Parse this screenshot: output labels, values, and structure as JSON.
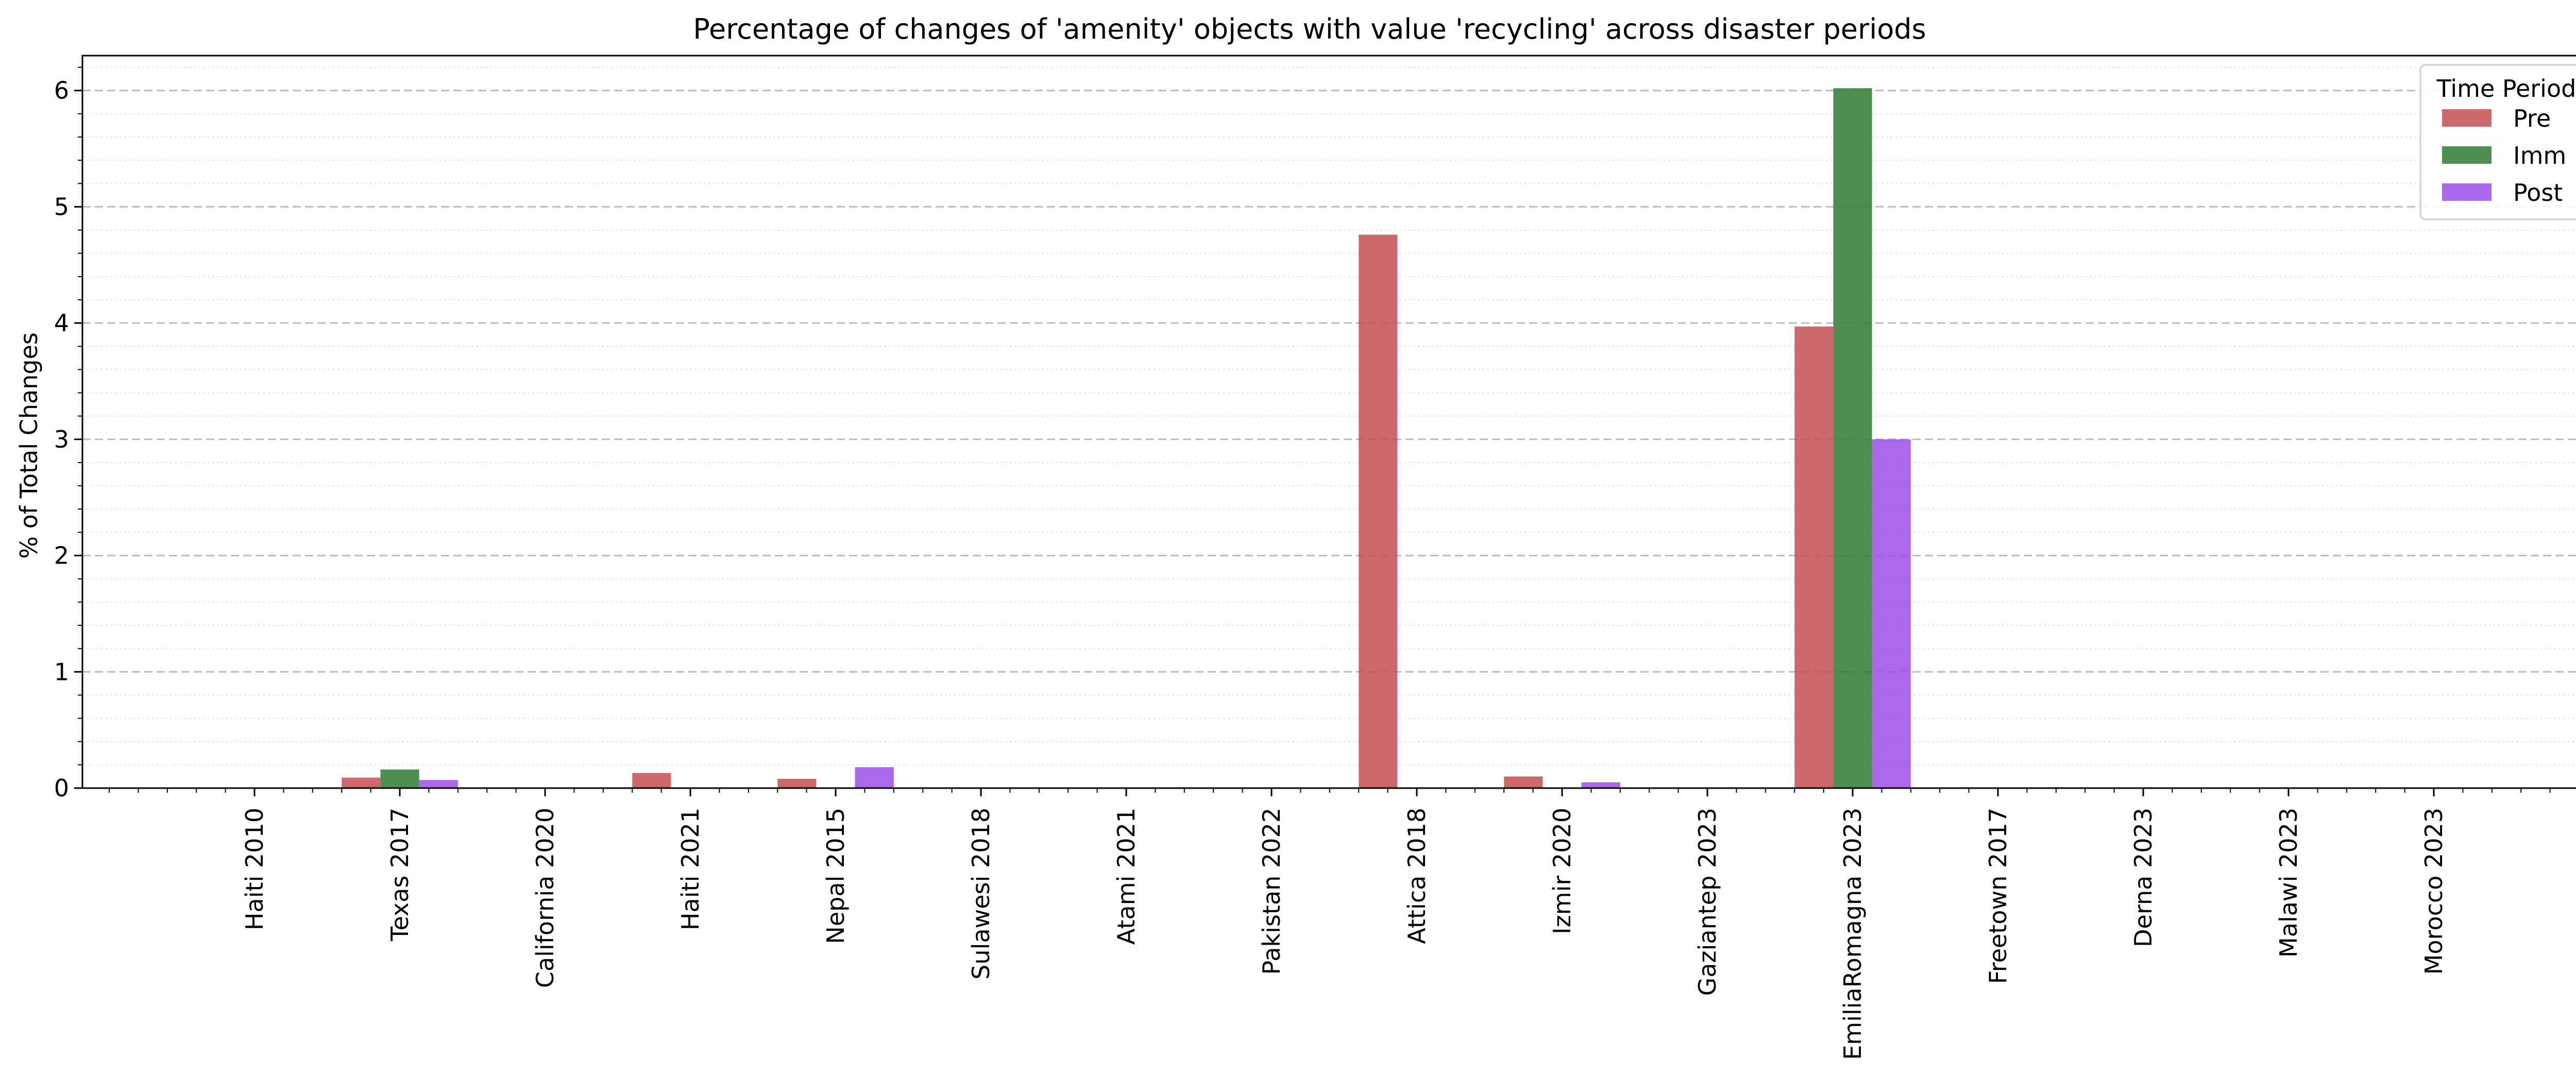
{
  "chart_data": {
    "type": "bar",
    "title": "Percentage of changes of 'amenity' objects with value 'recycling' across disaster periods",
    "xlabel": "",
    "ylabel": "% of Total Changes",
    "ylim": [
      0,
      6.3
    ],
    "yticks": [
      0,
      1,
      2,
      3,
      4,
      5,
      6
    ],
    "grid": {
      "major": "dashed",
      "minor": "dotted",
      "axis": "y"
    },
    "legend": {
      "title": "Time Period",
      "placement": "top-right"
    },
    "categories": [
      "Haiti 2010",
      "Texas 2017",
      "California 2020",
      "Haiti 2021",
      "Nepal 2015",
      "Sulawesi 2018",
      "Atami 2021",
      "Pakistan 2022",
      "Attica 2018",
      "Izmir 2020",
      "Gaziantep 2023",
      "EmiliaRomagna 2023",
      "Freetown 2017",
      "Derna 2023",
      "Malawi 2023",
      "Morocco 2023"
    ],
    "series": [
      {
        "name": "Pre",
        "color": "#c44e52",
        "values": [
          0,
          0.09,
          0,
          0.13,
          0.08,
          0,
          0,
          0,
          4.76,
          0.1,
          0,
          3.97,
          0,
          0,
          0,
          0
        ]
      },
      {
        "name": "Imm",
        "color": "#2e7d32",
        "values": [
          0,
          0.16,
          0,
          0,
          0,
          0,
          0,
          0,
          0,
          0,
          0,
          6.02,
          0,
          0,
          0,
          0
        ]
      },
      {
        "name": "Post",
        "color": "#9b4de8",
        "values": [
          0,
          0.07,
          0,
          0,
          0.18,
          0,
          0,
          0,
          0,
          0.05,
          0,
          3.0,
          0,
          0,
          0,
          0
        ]
      }
    ]
  }
}
